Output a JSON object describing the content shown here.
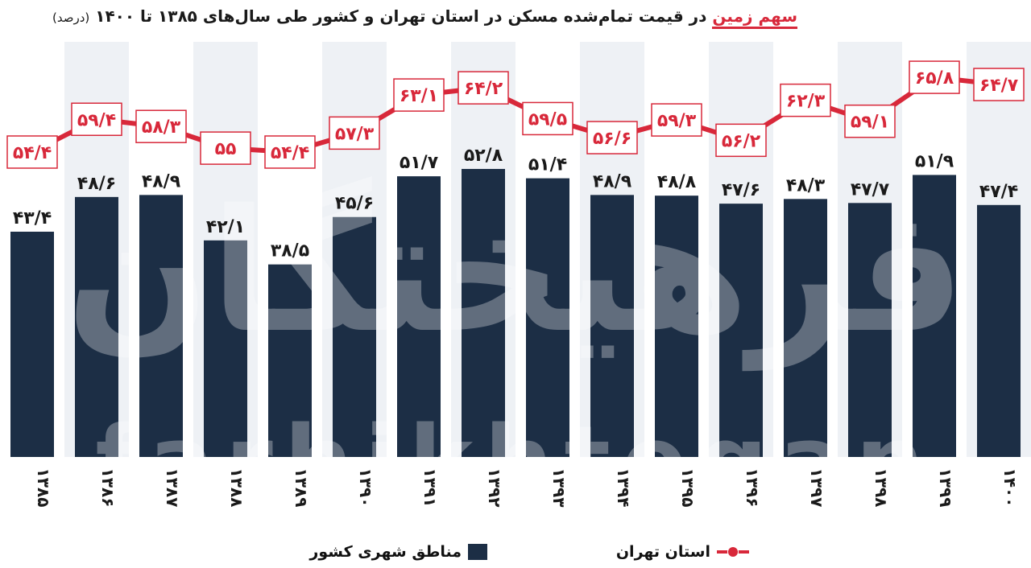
{
  "title": {
    "highlight": "سهم زمین",
    "main": "در قیمت تمام‌شده مسکن در استان تهران و کشور طی سال‌های ۱۳۸۵ تا ۱۴۰۰",
    "unit": "(درصد)"
  },
  "chart_data": {
    "type": "bar",
    "title": "سهم زمین در قیمت تمام‌شده مسکن در استان تهران و کشور طی سال‌های ۱۳۸۵ تا ۱۴۰۰ (درصد)",
    "categories": [
      "۱۳۸۵",
      "۱۳۸۶",
      "۱۳۸۷",
      "۱۳۸۸",
      "۱۳۸۹",
      "۱۳۹۰",
      "۱۳۹۱",
      "۱۳۹۲",
      "۱۳۹۳",
      "۱۳۹۴",
      "۱۳۹۵",
      "۱۳۹۶",
      "۱۳۹۷",
      "۱۳۹۸",
      "۱۳۹۹",
      "۱۴۰۰"
    ],
    "series": [
      {
        "name": "مناطق شهری کشور",
        "type": "bar",
        "color": "#1c2e45",
        "values": [
          43.4,
          48.6,
          48.9,
          42.1,
          38.5,
          45.6,
          51.7,
          52.8,
          51.4,
          48.9,
          48.8,
          47.6,
          48.3,
          47.7,
          51.9,
          47.4
        ],
        "labels": [
          "۴۳/۴",
          "۴۸/۶",
          "۴۸/۹",
          "۴۲/۱",
          "۳۸/۵",
          "۴۵/۶",
          "۵۱/۷",
          "۵۲/۸",
          "۵۱/۴",
          "۴۸/۹",
          "۴۸/۸",
          "۴۷/۶",
          "۴۸/۳",
          "۴۷/۷",
          "۵۱/۹",
          "۴۷/۴"
        ]
      },
      {
        "name": "استان تهران",
        "type": "line",
        "color": "#d8283a",
        "values": [
          54.4,
          59.4,
          58.3,
          55,
          54.4,
          57.3,
          63.1,
          64.2,
          59.5,
          56.6,
          59.3,
          56.2,
          62.3,
          59.1,
          65.8,
          64.7
        ],
        "labels": [
          "۵۴/۴",
          "۵۹/۴",
          "۵۸/۳",
          "۵۵",
          "۵۴/۴",
          "۵۷/۳",
          "۶۳/۱",
          "۶۴/۲",
          "۵۹/۵",
          "۵۶/۶",
          "۵۹/۳",
          "۵۶/۲",
          "۶۲/۳",
          "۵۹/۱",
          "۶۵/۸",
          "۶۴/۷"
        ]
      }
    ],
    "xlabel": "",
    "ylabel": "",
    "legend_position": "bottom",
    "grid": false
  },
  "legend": {
    "bar_label": "مناطق شهری کشور",
    "line_label": "استان تهران"
  },
  "watermark": {
    "logo": "فرهیختگان",
    "text": "farhikhtegan"
  }
}
